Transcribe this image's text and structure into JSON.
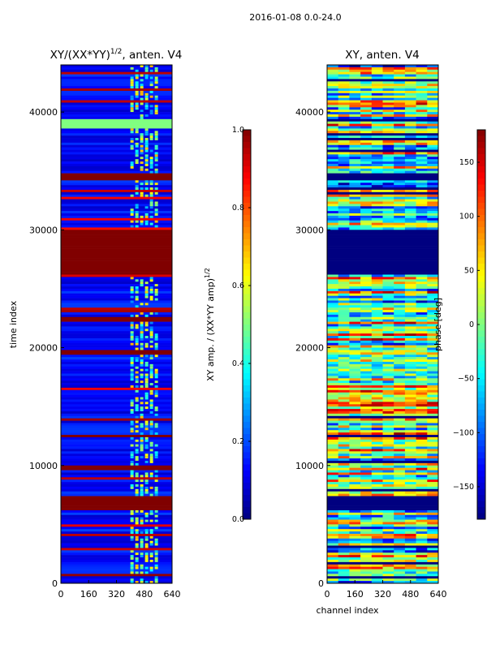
{
  "figure": {
    "suptitle": "2016-01-08 0.0-24.0"
  },
  "chart_data": [
    {
      "type": "heatmap",
      "title_main": "XY/(XX*YY)",
      "title_exp": "1/2",
      "title_tail": ", anten. V4",
      "ylabel": "time index",
      "xlabel": "",
      "xlim": [
        0,
        640
      ],
      "ylim": [
        0,
        44000
      ],
      "xticks": [
        0,
        160,
        320,
        480,
        640
      ],
      "xtick_labels": [
        "0",
        "160",
        "320",
        "480",
        "640"
      ],
      "yticks": [
        0,
        10000,
        20000,
        30000,
        40000
      ],
      "ytick_labels": [
        "0",
        "10000",
        "20000",
        "30000",
        "40000"
      ],
      "colormap": "jet",
      "background_value": 0.07,
      "bands": [
        {
          "t0": 6300,
          "t1": 7400,
          "value": 1.0
        },
        {
          "t0": 26200,
          "t1": 29900,
          "value": 1.0
        },
        {
          "t0": 34300,
          "t1": 34800,
          "value": 1.0
        },
        {
          "t0": 22200,
          "t1": 22500,
          "value": 1.0
        },
        {
          "t0": 19500,
          "t1": 19800,
          "value": 1.0
        },
        {
          "t0": 12400,
          "t1": 12700,
          "value": 1.0
        },
        {
          "t0": 9700,
          "t1": 10000,
          "value": 1.0
        },
        {
          "t0": 38700,
          "t1": 39400,
          "value": 0.5
        }
      ],
      "active_channels": [
        400,
        560
      ],
      "colorbar": {
        "label_main": "XY amp. / (XX*YY amp)",
        "label_exp": "1/2",
        "range": [
          0.0,
          1.0
        ],
        "ticks": [
          0.0,
          0.2,
          0.4,
          0.6,
          0.8,
          1.0
        ],
        "tick_labels": [
          "0.0",
          "0.2",
          "0.4",
          "0.6",
          "0.8",
          "1.0"
        ]
      }
    },
    {
      "type": "heatmap",
      "title_main": "XY, anten. V4",
      "ylabel": "",
      "xlabel": "channel index",
      "xlim": [
        0,
        640
      ],
      "ylim": [
        0,
        44000
      ],
      "xticks": [
        0,
        160,
        320,
        480,
        640
      ],
      "xtick_labels": [
        "0",
        "160",
        "320",
        "480",
        "640"
      ],
      "yticks": [
        0,
        10000,
        20000,
        30000,
        40000
      ],
      "ytick_labels": [
        "0",
        "10000",
        "20000",
        "30000",
        "40000"
      ],
      "colormap": "jet",
      "bands": [
        {
          "t0": 6300,
          "t1": 7400,
          "value": -180
        },
        {
          "t0": 26200,
          "t1": 29900,
          "value": -180
        },
        {
          "t0": 34300,
          "t1": 34800,
          "value": -180
        }
      ],
      "colorbar": {
        "label_main": "phase [deg]",
        "range": [
          -180,
          180
        ],
        "ticks": [
          -150,
          -100,
          -50,
          0,
          50,
          100,
          150
        ],
        "tick_labels": [
          "−150",
          "−100",
          "−50",
          "0",
          "50",
          "100",
          "150"
        ]
      }
    }
  ]
}
